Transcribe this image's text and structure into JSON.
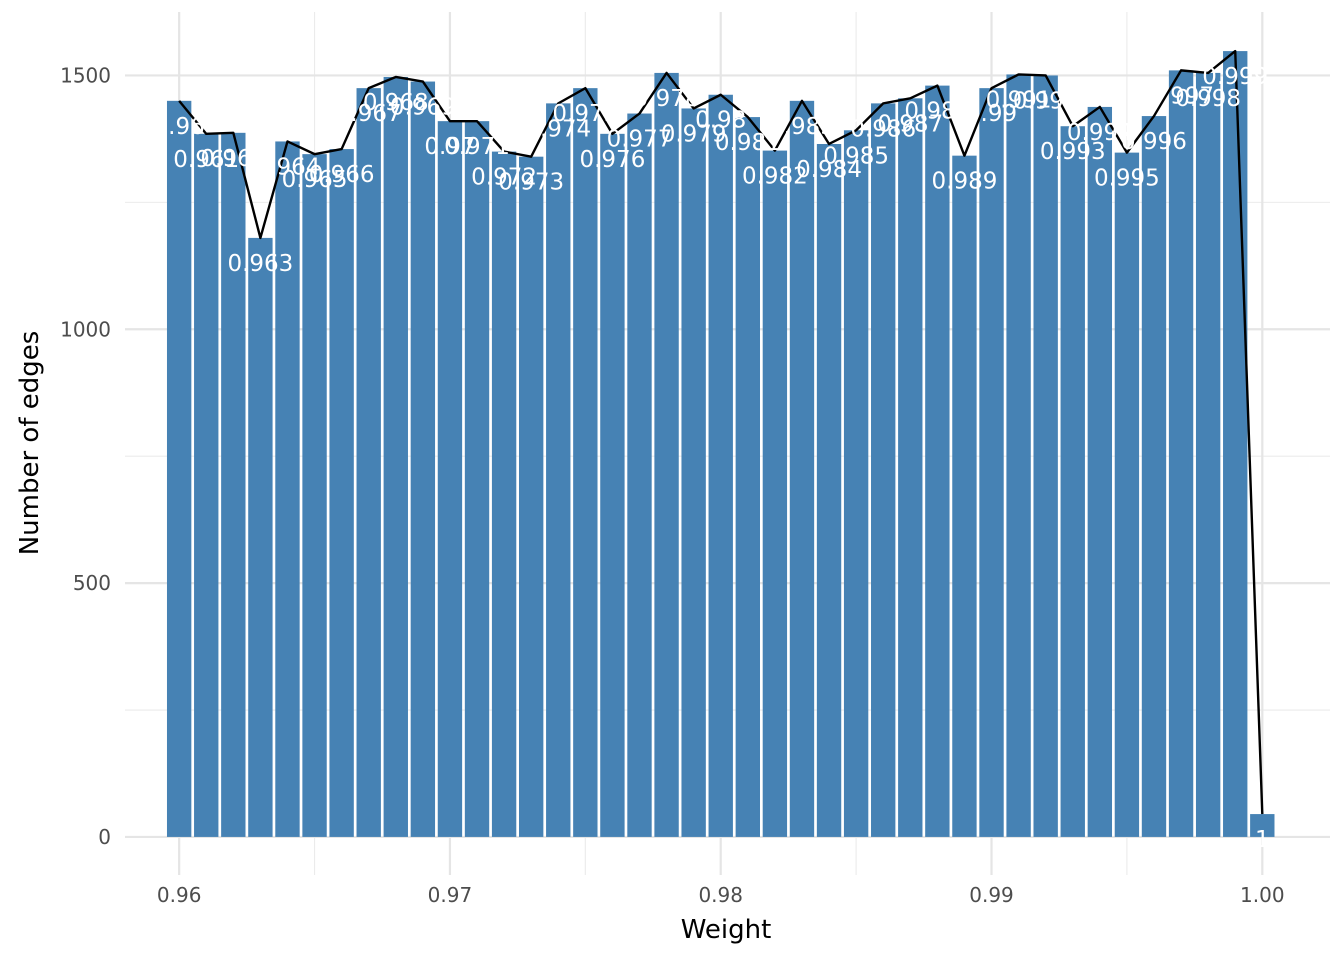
{
  "chart_data": {
    "type": "bar",
    "title": "",
    "xlabel": "Weight",
    "ylabel": "Number of edges",
    "xlim": [
      0.958,
      1.0025
    ],
    "ylim": [
      -75,
      1625
    ],
    "grid": true,
    "legend": "none",
    "x_ticks": [
      0.96,
      0.97,
      0.98,
      0.99,
      1.0
    ],
    "x_tick_labels": [
      "0.96",
      "0.97",
      "0.98",
      "0.99",
      "1.00"
    ],
    "y_ticks": [
      0,
      500,
      1000,
      1500
    ],
    "y_tick_labels": [
      "0",
      "500",
      "1000",
      "1500"
    ],
    "bar_color": "#4682b4",
    "line_color": "#000000",
    "x": [
      0.96,
      0.961,
      0.962,
      0.963,
      0.964,
      0.965,
      0.966,
      0.967,
      0.968,
      0.969,
      0.97,
      0.971,
      0.972,
      0.973,
      0.974,
      0.975,
      0.976,
      0.977,
      0.978,
      0.979,
      0.98,
      0.981,
      0.982,
      0.983,
      0.984,
      0.985,
      0.986,
      0.987,
      0.988,
      0.989,
      0.99,
      0.991,
      0.992,
      0.993,
      0.994,
      0.995,
      0.996,
      0.997,
      0.998,
      0.999,
      1.0
    ],
    "bar_labels": [
      "0.96",
      "0.961",
      "0.962",
      "0.963",
      "0.964",
      "0.965",
      "0.966",
      "0.967",
      "0.968",
      "0.969",
      "0.97",
      "0.971",
      "0.972",
      "0.973",
      "0.974",
      "0.975",
      "0.976",
      "0.977",
      "0.978",
      "0.979",
      "0.98",
      "0.981",
      "0.982",
      "0.983",
      "0.984",
      "0.985",
      "0.986",
      "0.987",
      "0.988",
      "0.989",
      "0.99",
      "0.991",
      "0.992",
      "0.993",
      "0.994",
      "0.995",
      "0.996",
      "0.997",
      "0.998",
      "0.999",
      "1"
    ],
    "values": [
      1450,
      1385,
      1387,
      1180,
      1370,
      1345,
      1355,
      1475,
      1497,
      1488,
      1410,
      1410,
      1350,
      1340,
      1445,
      1475,
      1385,
      1425,
      1505,
      1435,
      1462,
      1418,
      1352,
      1450,
      1365,
      1392,
      1445,
      1455,
      1480,
      1342,
      1475,
      1502,
      1500,
      1400,
      1438,
      1348,
      1420,
      1510,
      1505,
      1548,
      45
    ]
  }
}
